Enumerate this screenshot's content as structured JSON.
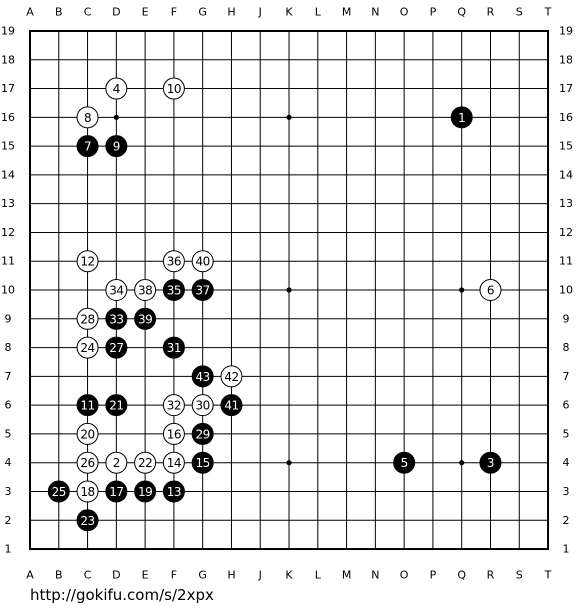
{
  "columns": [
    "A",
    "B",
    "C",
    "D",
    "E",
    "F",
    "G",
    "H",
    "J",
    "K",
    "L",
    "M",
    "N",
    "O",
    "P",
    "Q",
    "R",
    "S",
    "T"
  ],
  "rows": [
    19,
    18,
    17,
    16,
    15,
    14,
    13,
    12,
    11,
    10,
    9,
    8,
    7,
    6,
    5,
    4,
    3,
    2,
    1
  ],
  "stones": [
    {
      "number": 1,
      "color": "black",
      "col": "Q",
      "row": 16
    },
    {
      "number": 2,
      "color": "white",
      "col": "D",
      "row": 4
    },
    {
      "number": 3,
      "color": "black",
      "col": "R",
      "row": 4
    },
    {
      "number": 4,
      "color": "white",
      "col": "D",
      "row": 17
    },
    {
      "number": 5,
      "color": "black",
      "col": "O",
      "row": 4
    },
    {
      "number": 6,
      "color": "white",
      "col": "R",
      "row": 10
    },
    {
      "number": 7,
      "color": "black",
      "col": "C",
      "row": 15
    },
    {
      "number": 8,
      "color": "white",
      "col": "C",
      "row": 16
    },
    {
      "number": 9,
      "color": "black",
      "col": "D",
      "row": 15
    },
    {
      "number": 10,
      "color": "white",
      "col": "F",
      "row": 17
    },
    {
      "number": 11,
      "color": "black",
      "col": "C",
      "row": 6
    },
    {
      "number": 12,
      "color": "white",
      "col": "C",
      "row": 11
    },
    {
      "number": 13,
      "color": "black",
      "col": "F",
      "row": 3
    },
    {
      "number": 14,
      "color": "white",
      "col": "F",
      "row": 4
    },
    {
      "number": 15,
      "color": "black",
      "col": "G",
      "row": 4
    },
    {
      "number": 16,
      "color": "white",
      "col": "F",
      "row": 5
    },
    {
      "number": 17,
      "color": "black",
      "col": "D",
      "row": 3
    },
    {
      "number": 18,
      "color": "white",
      "col": "C",
      "row": 3
    },
    {
      "number": 19,
      "color": "black",
      "col": "E",
      "row": 3
    },
    {
      "number": 20,
      "color": "white",
      "col": "C",
      "row": 5
    },
    {
      "number": 21,
      "color": "black",
      "col": "D",
      "row": 6
    },
    {
      "number": 22,
      "color": "white",
      "col": "E",
      "row": 4
    },
    {
      "number": 23,
      "color": "black",
      "col": "C",
      "row": 2
    },
    {
      "number": 24,
      "color": "white",
      "col": "C",
      "row": 8
    },
    {
      "number": 25,
      "color": "black",
      "col": "B",
      "row": 3
    },
    {
      "number": 26,
      "color": "white",
      "col": "C",
      "row": 4
    },
    {
      "number": 27,
      "color": "black",
      "col": "D",
      "row": 8
    },
    {
      "number": 28,
      "color": "white",
      "col": "C",
      "row": 9
    },
    {
      "number": 29,
      "color": "black",
      "col": "G",
      "row": 5
    },
    {
      "number": 30,
      "color": "white",
      "col": "G",
      "row": 6
    },
    {
      "number": 31,
      "color": "black",
      "col": "F",
      "row": 8
    },
    {
      "number": 32,
      "color": "white",
      "col": "F",
      "row": 6
    },
    {
      "number": 33,
      "color": "black",
      "col": "D",
      "row": 9
    },
    {
      "number": 34,
      "color": "white",
      "col": "D",
      "row": 10
    },
    {
      "number": 35,
      "color": "black",
      "col": "F",
      "row": 10
    },
    {
      "number": 36,
      "color": "white",
      "col": "F",
      "row": 11
    },
    {
      "number": 37,
      "color": "black",
      "col": "G",
      "row": 10
    },
    {
      "number": 38,
      "color": "white",
      "col": "E",
      "row": 10
    },
    {
      "number": 39,
      "color": "black",
      "col": "E",
      "row": 9
    },
    {
      "number": 40,
      "color": "white",
      "col": "G",
      "row": 11
    },
    {
      "number": 41,
      "color": "black",
      "col": "H",
      "row": 6
    },
    {
      "number": 42,
      "color": "white",
      "col": "H",
      "row": 7
    },
    {
      "number": 43,
      "color": "black",
      "col": "G",
      "row": 7
    }
  ],
  "url": "http://gokifu.com/s/2xpx"
}
